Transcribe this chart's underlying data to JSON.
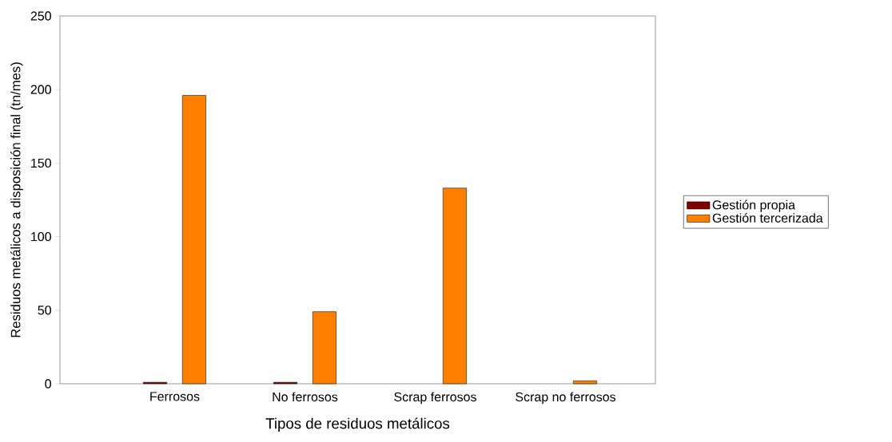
{
  "chart_data": {
    "type": "bar",
    "xlabel": "Tipos de residuos metálicos",
    "ylabel": "Residuos metálicos a disposición final (tn/mes)",
    "categories": [
      "Ferrosos",
      "No ferrosos",
      "Scrap ferrosos",
      "Scrap no ferrosos"
    ],
    "series": [
      {
        "name": "Gestión propia",
        "color": "#800000",
        "values": [
          1,
          1,
          null,
          null
        ]
      },
      {
        "name": "Gestión tercerizada",
        "color": "#ff8000",
        "values": [
          196,
          49,
          133,
          2
        ]
      }
    ],
    "ylim": [
      0,
      250
    ],
    "yticks": [
      0,
      50,
      100,
      150,
      200,
      250
    ],
    "legend": "right",
    "grid": false
  }
}
